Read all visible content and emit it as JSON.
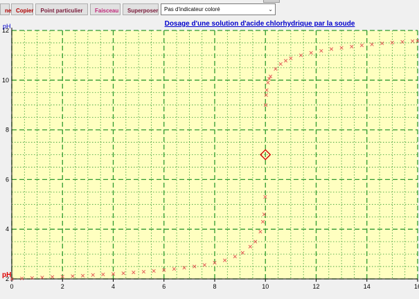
{
  "toolbar": {
    "buttons": [
      {
        "label": "ne",
        "color": "#b00000"
      },
      {
        "label": "Copier",
        "color": "#b00000"
      },
      {
        "label": "Point particulier",
        "color": "#7a1a3a"
      },
      {
        "label": "Faisceau",
        "color": "#c0287a"
      },
      {
        "label": "Superposer",
        "color": "#7a1a3a"
      }
    ],
    "indicator_select": "Pas d'indicateur coloré"
  },
  "chart_data": {
    "type": "scatter",
    "title": "Dosage d'une solution d'acide chlorhydrique par la soude",
    "ylabel": "pH",
    "xlabel": "",
    "curve_label": "pH",
    "xlim": [
      0,
      16
    ],
    "ylim": [
      2,
      12
    ],
    "x_ticks": [
      "0",
      "2",
      "4",
      "6",
      "8",
      "10",
      "12",
      "14",
      "16"
    ],
    "y_ticks": [
      "2",
      "4",
      "6",
      "8",
      "10",
      "12"
    ],
    "grid": true,
    "equivalence_point": {
      "x": 10,
      "y": 7
    },
    "series": [
      {
        "color": "#e05050",
        "points": [
          [
            0.0,
            2.0
          ],
          [
            0.4,
            2.02
          ],
          [
            0.8,
            2.04
          ],
          [
            1.2,
            2.06
          ],
          [
            1.6,
            2.08
          ],
          [
            2.0,
            2.09
          ],
          [
            2.4,
            2.11
          ],
          [
            2.8,
            2.13
          ],
          [
            3.2,
            2.16
          ],
          [
            3.6,
            2.18
          ],
          [
            4.0,
            2.2
          ],
          [
            4.4,
            2.23
          ],
          [
            4.8,
            2.26
          ],
          [
            5.2,
            2.29
          ],
          [
            5.6,
            2.32
          ],
          [
            6.0,
            2.36
          ],
          [
            6.4,
            2.4
          ],
          [
            6.8,
            2.45
          ],
          [
            7.2,
            2.5
          ],
          [
            7.6,
            2.56
          ],
          [
            8.0,
            2.65
          ],
          [
            8.4,
            2.75
          ],
          [
            8.8,
            2.9
          ],
          [
            9.1,
            3.05
          ],
          [
            9.4,
            3.3
          ],
          [
            9.6,
            3.5
          ],
          [
            9.8,
            3.9
          ],
          [
            9.9,
            4.3
          ],
          [
            9.95,
            4.6
          ],
          [
            9.99,
            5.3
          ],
          [
            10.01,
            9.0
          ],
          [
            10.03,
            9.4
          ],
          [
            10.05,
            9.6
          ],
          [
            10.1,
            9.9
          ],
          [
            10.15,
            10.05
          ],
          [
            10.2,
            10.15
          ],
          [
            10.4,
            10.45
          ],
          [
            10.6,
            10.65
          ],
          [
            10.8,
            10.78
          ],
          [
            11.0,
            10.88
          ],
          [
            11.4,
            11.0
          ],
          [
            11.8,
            11.1
          ],
          [
            12.2,
            11.18
          ],
          [
            12.6,
            11.25
          ],
          [
            13.0,
            11.3
          ],
          [
            13.4,
            11.35
          ],
          [
            13.8,
            11.4
          ],
          [
            14.2,
            11.44
          ],
          [
            14.6,
            11.48
          ],
          [
            15.0,
            11.51
          ],
          [
            15.4,
            11.54
          ],
          [
            15.8,
            11.57
          ],
          [
            16.0,
            11.58
          ]
        ]
      }
    ]
  },
  "colors": {
    "plot_background": "#ffffc0",
    "major_grid": "#2e9a2e",
    "minor_grid": "#2e9a2e",
    "title": "#0000cc",
    "axis_label": "#0000cc",
    "curve": "#e05050",
    "equivalence_marker": "#cc0000"
  }
}
